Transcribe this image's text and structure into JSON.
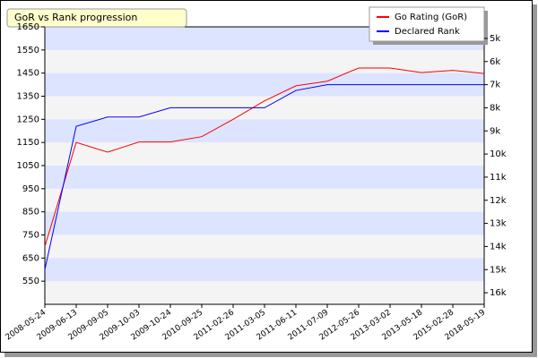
{
  "chart_data": {
    "type": "line",
    "title": "GoR vs Rank progression",
    "categories": [
      "2008-05-24",
      "2009-06-13",
      "2009-09-05",
      "2009-10-03",
      "2009-10-24",
      "2010-09-25",
      "2011-02-26",
      "2011-03-05",
      "2011-06-11",
      "2011-07-09",
      "2012-05-26",
      "2013-03-02",
      "2013-05-18",
      "2015-02-28",
      "2018-05-19"
    ],
    "series": [
      {
        "name": "Go Rating (GoR)",
        "color": "#ff0000",
        "values": [
          700,
          1150,
          1108,
          1152,
          1152,
          1175,
          1250,
          1330,
          1395,
          1415,
          1472,
          1472,
          1452,
          1462,
          1448
        ]
      },
      {
        "name": "Declared Rank",
        "color": "#0000ff",
        "axis": "y2",
        "values": [
          15,
          8.8,
          8.4,
          8.4,
          8,
          8,
          8,
          8,
          7.25,
          7,
          7,
          7,
          7,
          7,
          7
        ]
      }
    ],
    "ylim": [
      450,
      1650
    ],
    "yticks": [
      550,
      650,
      750,
      850,
      950,
      1050,
      1150,
      1250,
      1350,
      1450,
      1550,
      1650
    ],
    "y2lim": [
      16.5,
      4.5
    ],
    "y2ticks": [
      {
        "value": 5,
        "label": "5k"
      },
      {
        "value": 6,
        "label": "6k"
      },
      {
        "value": 7,
        "label": "7k"
      },
      {
        "value": 8,
        "label": "8k"
      },
      {
        "value": 9,
        "label": "9k"
      },
      {
        "value": 10,
        "label": "10k"
      },
      {
        "value": 11,
        "label": "11k"
      },
      {
        "value": 12,
        "label": "12k"
      },
      {
        "value": 13,
        "label": "13k"
      },
      {
        "value": 14,
        "label": "14k"
      },
      {
        "value": 15,
        "label": "15k"
      },
      {
        "value": 16,
        "label": "16k"
      }
    ],
    "legend": "top-right"
  }
}
